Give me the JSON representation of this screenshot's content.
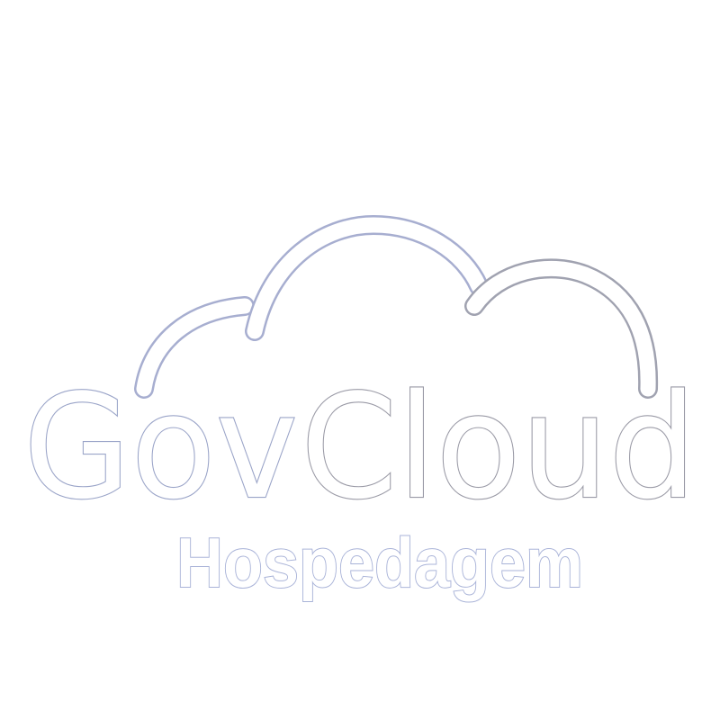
{
  "logo": {
    "brand_part_1": "Gov",
    "brand_part_2": "Cloud",
    "tagline": "Hospedagem",
    "icon": "cloud-icon",
    "colors": {
      "outline_blue": "#9aa4c8",
      "outline_gray": "#9a9aa6",
      "tagline_outline": "#a9b3d8",
      "fill": "#ffffff"
    }
  }
}
